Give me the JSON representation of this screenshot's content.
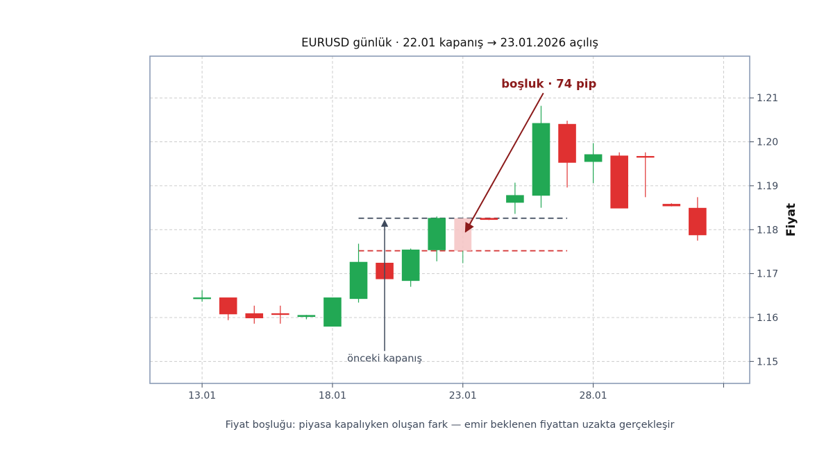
{
  "chart_data": {
    "type": "candlestick",
    "title": "EURUSD günlük · 22.01 kapanış → 23.01.2026 açılış",
    "xlabel": "",
    "ylabel": "Fiyat",
    "caption": "Fiyat boşluğu: piyasa kapalıyken oluşan fark — emir beklenen fiyattan uzakta gerçekleşir",
    "ylim": [
      1.145,
      1.2195
    ],
    "xlim": [
      11,
      34
    ],
    "x_ticks": [
      {
        "x": 13,
        "label": "13.01"
      },
      {
        "x": 18,
        "label": "18.01"
      },
      {
        "x": 23,
        "label": "23.01"
      },
      {
        "x": 28,
        "label": "28.01"
      },
      {
        "x": 33,
        "label": ""
      }
    ],
    "y_ticks": [
      1.15,
      1.16,
      1.17,
      1.18,
      1.19,
      1.2,
      1.21
    ],
    "y_tick_labels": [
      "1.15",
      "1.16",
      "1.17",
      "1.18",
      "1.19",
      "1.20",
      "1.21"
    ],
    "grid": true,
    "colors": {
      "up": "#22a854",
      "down": "#e03131",
      "gap_fill": "#f5c6c6",
      "prev_close_line": "#3f4a5c",
      "gap_line": "#d63a3a",
      "annotation": "#8b1a1a",
      "frame": "#8a9bb5"
    },
    "candles": [
      {
        "x": 13,
        "open": 1.1644,
        "high": 1.1662,
        "low": 1.1636,
        "close": 1.1645
      },
      {
        "x": 14,
        "open": 1.1645,
        "high": 1.1645,
        "low": 1.1594,
        "close": 1.1608
      },
      {
        "x": 15,
        "open": 1.1609,
        "high": 1.1627,
        "low": 1.1586,
        "close": 1.1599
      },
      {
        "x": 16,
        "open": 1.1609,
        "high": 1.1627,
        "low": 1.1586,
        "close": 1.1607
      },
      {
        "x": 17,
        "open": 1.1602,
        "high": 1.1606,
        "low": 1.1596,
        "close": 1.1605
      },
      {
        "x": 18,
        "open": 1.158,
        "high": 1.1645,
        "low": 1.158,
        "close": 1.1645
      },
      {
        "x": 19,
        "open": 1.1643,
        "high": 1.1768,
        "low": 1.1634,
        "close": 1.1726
      },
      {
        "x": 20,
        "open": 1.1724,
        "high": 1.1724,
        "low": 1.1687,
        "close": 1.1688
      },
      {
        "x": 21,
        "open": 1.1684,
        "high": 1.1757,
        "low": 1.167,
        "close": 1.1754
      },
      {
        "x": 22,
        "open": 1.1754,
        "high": 1.183,
        "low": 1.1728,
        "close": 1.1826
      },
      {
        "x": 23,
        "open": 1.1826,
        "high": 1.1826,
        "low": 1.1752,
        "close": 1.1752,
        "gap": true
      },
      {
        "x": 24,
        "open": 1.1826,
        "high": 1.1826,
        "low": 1.1822,
        "close": 1.1823
      },
      {
        "x": 25,
        "open": 1.1862,
        "high": 1.1907,
        "low": 1.1836,
        "close": 1.1878
      },
      {
        "x": 26,
        "open": 1.1878,
        "high": 1.2082,
        "low": 1.185,
        "close": 1.2042
      },
      {
        "x": 27,
        "open": 1.204,
        "high": 1.2048,
        "low": 1.1896,
        "close": 1.1953
      },
      {
        "x": 28,
        "open": 1.1955,
        "high": 1.1997,
        "low": 1.1906,
        "close": 1.1971
      },
      {
        "x": 29,
        "open": 1.1968,
        "high": 1.1976,
        "low": 1.1849,
        "close": 1.1849
      },
      {
        "x": 30,
        "open": 1.1967,
        "high": 1.1976,
        "low": 1.1874,
        "close": 1.1965
      },
      {
        "x": 31,
        "open": 1.1858,
        "high": 1.186,
        "low": 1.1853,
        "close": 1.1854
      },
      {
        "x": 32,
        "open": 1.1849,
        "high": 1.1874,
        "low": 1.1775,
        "close": 1.1788
      }
    ],
    "reference_lines": [
      {
        "name": "prev_close",
        "y": 1.1826,
        "x_from": 19,
        "x_to": 27,
        "style": "dashed"
      },
      {
        "name": "gap_open",
        "y": 1.1752,
        "x_from": 19,
        "x_to": 27,
        "style": "dashed"
      }
    ],
    "annotations": [
      {
        "text": "boşluk · 74 pip",
        "xy": [
          23.1,
          1.1795
        ],
        "xytext": [
          26.3,
          1.2133
        ]
      },
      {
        "text": "önceki kapanış",
        "xy": [
          20,
          1.1826
        ],
        "xytext": [
          20,
          1.1508
        ]
      }
    ]
  }
}
